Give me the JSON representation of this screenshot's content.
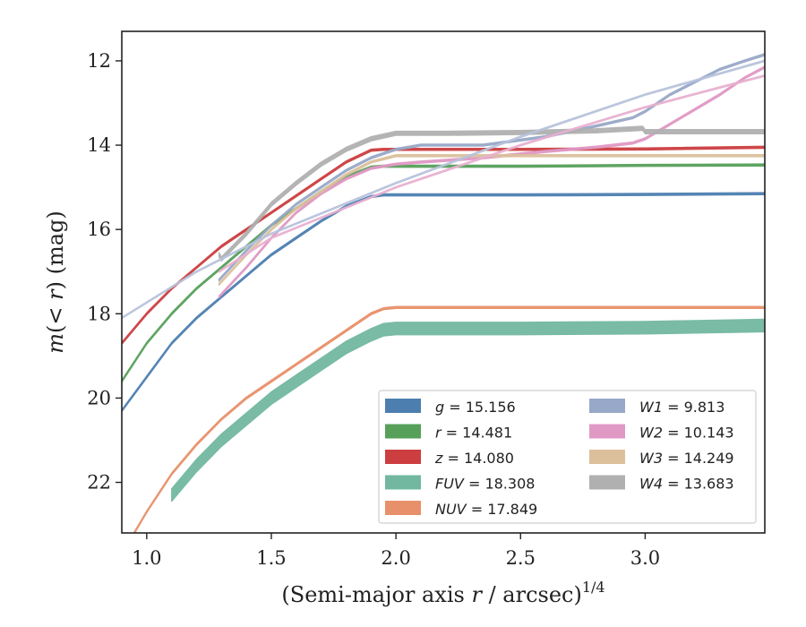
{
  "chart_data": {
    "type": "line",
    "xlabel": "(Semi-major axis r / arcsec)^{1/4}",
    "ylabel": "m(< r) (mag)",
    "xlim": [
      0.9,
      3.48
    ],
    "ylim": [
      23.2,
      11.3
    ],
    "y_inverted": true,
    "xticks": [
      "1.0",
      "1.5",
      "2.0",
      "2.5",
      "3.0"
    ],
    "yticks": [
      "12",
      "14",
      "16",
      "18",
      "20",
      "22"
    ],
    "grid": false,
    "legend_position": "lower-right",
    "series": [
      {
        "name": "g = 15.156",
        "color": "#4c7fb0",
        "width": 0.05,
        "x": [
          0.9,
          1.0,
          1.1,
          1.2,
          1.3,
          1.4,
          1.5,
          1.6,
          1.7,
          1.8,
          1.9,
          1.95,
          2.0,
          2.5,
          3.0,
          3.48
        ],
        "y": [
          20.3,
          19.5,
          18.7,
          18.1,
          17.6,
          17.1,
          16.6,
          16.2,
          15.8,
          15.45,
          15.22,
          15.18,
          15.18,
          15.18,
          15.17,
          15.15
        ]
      },
      {
        "name": "r = 14.481",
        "color": "#56a05a",
        "width": 0.05,
        "x": [
          0.9,
          1.0,
          1.1,
          1.2,
          1.3,
          1.4,
          1.5,
          1.6,
          1.7,
          1.8,
          1.9,
          1.95,
          2.0,
          2.5,
          3.0,
          3.48
        ],
        "y": [
          19.6,
          18.7,
          18.0,
          17.4,
          16.9,
          16.4,
          15.9,
          15.5,
          15.1,
          14.75,
          14.52,
          14.5,
          14.5,
          14.5,
          14.48,
          14.47
        ]
      },
      {
        "name": "z = 14.080",
        "color": "#cc3e40",
        "width": 0.05,
        "x": [
          0.9,
          1.0,
          1.1,
          1.2,
          1.3,
          1.4,
          1.5,
          1.6,
          1.7,
          1.8,
          1.9,
          1.95,
          2.0,
          2.5,
          3.0,
          3.48
        ],
        "y": [
          18.7,
          18.0,
          17.4,
          16.9,
          16.4,
          16.0,
          15.6,
          15.2,
          14.8,
          14.4,
          14.12,
          14.1,
          14.1,
          14.1,
          14.09,
          14.05
        ]
      },
      {
        "name": "FUV = 18.308",
        "color": "#72b8a1",
        "width": 0.3,
        "x": [
          1.1,
          1.2,
          1.3,
          1.4,
          1.5,
          1.6,
          1.7,
          1.8,
          1.9,
          1.95,
          2.0,
          2.5,
          3.0,
          3.48
        ],
        "y": [
          22.3,
          21.6,
          21.0,
          20.5,
          20.0,
          19.6,
          19.2,
          18.8,
          18.5,
          18.38,
          18.35,
          18.35,
          18.33,
          18.28
        ]
      },
      {
        "name": "NUV = 17.849",
        "color": "#e8906a",
        "width": 0.05,
        "x": [
          0.95,
          1.0,
          1.1,
          1.2,
          1.3,
          1.4,
          1.5,
          1.6,
          1.7,
          1.8,
          1.9,
          1.95,
          2.0,
          2.34,
          2.5,
          3.0,
          3.48
        ],
        "y": [
          23.2,
          22.7,
          21.8,
          21.1,
          20.5,
          20.0,
          19.6,
          19.2,
          18.8,
          18.4,
          18.0,
          17.88,
          17.85,
          17.85,
          17.85,
          17.85,
          17.85
        ]
      },
      {
        "name": "W1 = 9.813",
        "color": "#98a8c8",
        "width": 0.05,
        "x": [
          1.29,
          1.4,
          1.5,
          1.6,
          1.7,
          1.8,
          1.9,
          2.0,
          2.1,
          2.35,
          2.6,
          2.8,
          2.95,
          3.0,
          3.1,
          3.2,
          3.3,
          3.4,
          3.48
        ],
        "y": [
          17.2,
          16.5,
          15.9,
          15.4,
          15.0,
          14.6,
          14.3,
          14.1,
          14.0,
          14.0,
          13.8,
          13.55,
          13.35,
          13.2,
          12.8,
          12.5,
          12.2,
          12.0,
          11.85
        ]
      },
      {
        "name": "W2 = 10.143",
        "color": "#e098c4",
        "width": 0.05,
        "x": [
          1.29,
          1.4,
          1.5,
          1.6,
          1.7,
          1.8,
          1.9,
          2.0,
          2.1,
          2.35,
          2.6,
          2.8,
          2.95,
          3.0,
          3.1,
          3.2,
          3.3,
          3.4,
          3.48
        ],
        "y": [
          17.6,
          16.9,
          16.2,
          15.6,
          15.15,
          14.8,
          14.55,
          14.45,
          14.4,
          14.3,
          14.15,
          14.05,
          13.95,
          13.85,
          13.5,
          13.15,
          12.8,
          12.4,
          12.15
        ]
      },
      {
        "name": "W3 = 14.249",
        "color": "#dcc09c",
        "width": 0.05,
        "x": [
          1.29,
          1.4,
          1.5,
          1.6,
          1.7,
          1.8,
          1.9,
          2.0,
          2.34,
          2.5,
          3.0,
          3.48
        ],
        "y": [
          17.3,
          16.6,
          16.0,
          15.5,
          15.1,
          14.7,
          14.4,
          14.25,
          14.25,
          14.25,
          14.25,
          14.25
        ]
      },
      {
        "name": "W4 = 13.683",
        "color": "#b0b0b0",
        "width": 0.1,
        "x": [
          1.29,
          1.3,
          1.4,
          1.5,
          1.6,
          1.7,
          1.8,
          1.9,
          2.0,
          2.2,
          2.5,
          2.8,
          2.99,
          3.0,
          3.48
        ],
        "y": [
          16.6,
          16.7,
          16.1,
          15.4,
          14.9,
          14.45,
          14.1,
          13.85,
          13.72,
          13.72,
          13.7,
          13.66,
          13.6,
          13.68,
          13.68
        ]
      },
      {
        "name": "",
        "color": "#b8c4dc",
        "width": 0.035,
        "x": [
          0.9,
          1.2,
          1.5,
          2.0,
          2.5,
          3.0,
          3.48
        ],
        "y": [
          18.1,
          17.0,
          16.1,
          14.9,
          13.8,
          12.8,
          12.0
        ]
      },
      {
        "name": "",
        "color": "#e8b0d0",
        "width": 0.035,
        "x": [
          1.29,
          1.5,
          2.0,
          2.5,
          3.0,
          3.48
        ],
        "y": [
          17.0,
          16.2,
          15.0,
          14.0,
          13.1,
          12.35
        ]
      }
    ],
    "legend": [
      {
        "label": "g = 15.156",
        "color": "#4c7fb0",
        "col": 0
      },
      {
        "label": "r = 14.481",
        "color": "#56a05a",
        "col": 0
      },
      {
        "label": "z = 14.080",
        "color": "#cc3e40",
        "col": 0
      },
      {
        "label": "FUV = 18.308",
        "color": "#72b8a1",
        "col": 0
      },
      {
        "label": "NUV = 17.849",
        "color": "#e8906a",
        "col": 0
      },
      {
        "label": "W1 = 9.813",
        "color": "#98a8c8",
        "col": 1
      },
      {
        "label": "W2 = 10.143",
        "color": "#e098c4",
        "col": 1
      },
      {
        "label": "W3 = 14.249",
        "color": "#dcc09c",
        "col": 1
      },
      {
        "label": "W4 = 13.683",
        "color": "#b0b0b0",
        "col": 1
      }
    ]
  }
}
